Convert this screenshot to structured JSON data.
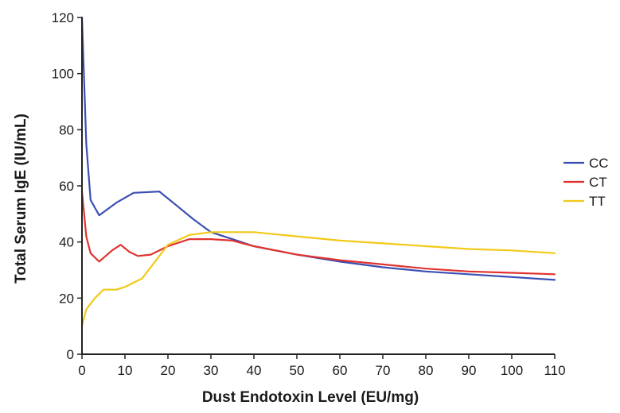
{
  "chart_data": {
    "type": "line",
    "title": "",
    "xlabel": "Dust Endotoxin Level (EU/mg)",
    "ylabel": "Total Serum IgE (IU/mL)",
    "xlim": [
      0,
      110
    ],
    "ylim": [
      0,
      120
    ],
    "xticks": [
      "0",
      "10",
      "20",
      "30",
      "40",
      "50",
      "60",
      "70",
      "80",
      "90",
      "100",
      "110"
    ],
    "yticks": [
      "0",
      "20",
      "40",
      "60",
      "80",
      "100",
      "120"
    ],
    "grid": false,
    "legend_position": "right",
    "series": [
      {
        "name": "CC",
        "color": "#3b4fb3",
        "x": [
          0,
          1,
          2,
          4,
          8,
          12,
          18,
          22,
          26,
          30,
          35,
          40,
          50,
          60,
          70,
          80,
          90,
          100,
          110
        ],
        "y": [
          120,
          75,
          55,
          49.5,
          54,
          57.5,
          58,
          53,
          48,
          43.5,
          41,
          38.5,
          35.5,
          33,
          31,
          29.5,
          28.5,
          27.5,
          26.5
        ]
      },
      {
        "name": "CT",
        "color": "#e0332f",
        "x": [
          0,
          1,
          2,
          4,
          7,
          9,
          11,
          13,
          16,
          20,
          25,
          30,
          35,
          40,
          50,
          60,
          70,
          80,
          90,
          100,
          110
        ],
        "y": [
          58,
          42,
          36,
          33,
          37,
          39,
          36.5,
          35,
          35.5,
          38.5,
          41,
          41,
          40.5,
          38.5,
          35.5,
          33.5,
          32,
          30.5,
          29.5,
          29,
          28.5
        ]
      },
      {
        "name": "TT",
        "color": "#f2c919",
        "x": [
          0,
          1,
          3,
          5,
          8,
          10,
          14,
          17,
          20,
          25,
          30,
          35,
          40,
          50,
          60,
          70,
          80,
          90,
          100,
          110
        ],
        "y": [
          10,
          16,
          20,
          23,
          23,
          24,
          27,
          33,
          39,
          42.5,
          43.5,
          43.5,
          43.5,
          42,
          40.5,
          39.5,
          38.5,
          37.5,
          37,
          36
        ]
      }
    ]
  }
}
